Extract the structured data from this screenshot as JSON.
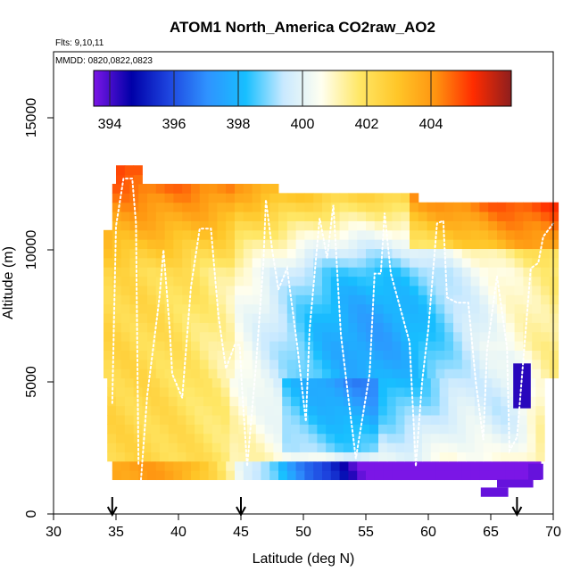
{
  "chart_data": {
    "type": "heatmap",
    "title": "ATOM1 North_America CO2raw_AO2",
    "annotations": [
      "Flts: 9,10,11",
      "MMDD: 0820,0822,0823"
    ],
    "xlabel": "Latitude (deg N)",
    "ylabel": "Altitude (m)",
    "xlim": [
      30,
      70
    ],
    "ylim": [
      0,
      17500
    ],
    "x_ticks": [
      "30",
      "35",
      "40",
      "45",
      "50",
      "55",
      "60",
      "65",
      "70"
    ],
    "y_ticks": [
      "0",
      "5000",
      "10000",
      "15000"
    ],
    "colorbar": {
      "range": [
        393.5,
        406.5
      ],
      "ticks": [
        "394",
        "396",
        "398",
        "400",
        "402",
        "404"
      ],
      "colors": [
        "#7B16E6",
        "#0000A8",
        "#1E46E0",
        "#2F93FF",
        "#17BFFF",
        "#C9E9FF",
        "#FFFFF0",
        "#FFE766",
        "#FFC628",
        "#FF9410",
        "#FF2C00",
        "#8E1E1E"
      ]
    },
    "flight_markers_lat": [
      34.7,
      45.0,
      67.1
    ],
    "grid": false
  }
}
